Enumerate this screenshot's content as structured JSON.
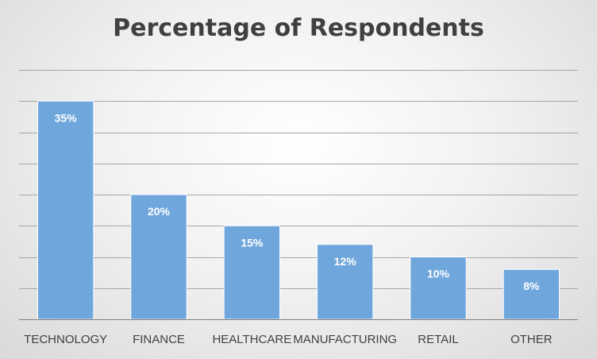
{
  "chart_data": {
    "type": "bar",
    "title": "Percentage of Respondents",
    "xlabel": "",
    "ylabel": "",
    "categories": [
      "TECHNOLOGY",
      "FINANCE",
      "HEALTHCARE",
      "MANUFACTURING",
      "RETAIL",
      "OTHER"
    ],
    "values": [
      35,
      20,
      15,
      12,
      10,
      8
    ],
    "data_labels": [
      "35%",
      "20%",
      "15%",
      "12%",
      "10%",
      "8%"
    ],
    "ylim": [
      0,
      40
    ],
    "y_gridline_step": 5,
    "grid": true,
    "legend": "none",
    "bar_color": "#6fa6dc"
  }
}
